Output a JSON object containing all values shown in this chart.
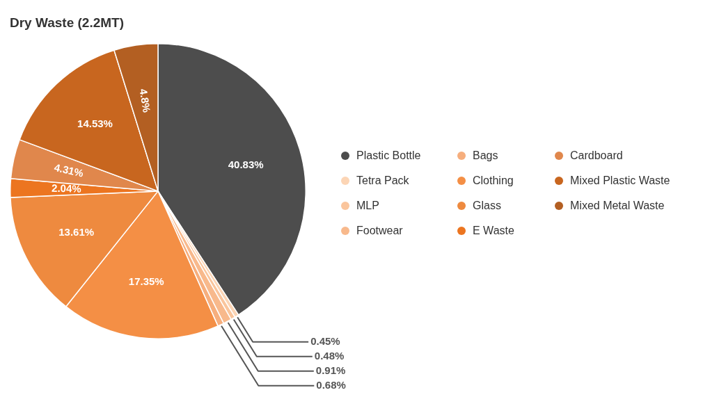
{
  "chart_data": {
    "type": "pie",
    "title": "Dry Waste (2.2MT)",
    "categories": [
      "Plastic Bottle",
      "Tetra Pack",
      "MLP",
      "Footwear",
      "Bags",
      "Clothing",
      "Glass",
      "E Waste",
      "Cardboard",
      "Mixed Plastic Waste",
      "Mixed Metal Waste"
    ],
    "values": [
      40.83,
      0.45,
      0.48,
      0.91,
      0.68,
      17.35,
      13.61,
      2.04,
      4.31,
      14.53,
      4.8
    ],
    "value_labels": [
      "40.83%",
      "0.45%",
      "0.48%",
      "0.91%",
      "0.68%",
      "17.35%",
      "13.61%",
      "2.04%",
      "4.31%",
      "14.53%",
      "4.8%"
    ],
    "colors": [
      "#4d4d4d",
      "#fcd5b5",
      "#fac59c",
      "#f8b98c",
      "#f6ae7d",
      "#f48f45",
      "#ee8a3f",
      "#ec7520",
      "#e0874c",
      "#c8661f",
      "#b35f22"
    ],
    "legend": "right"
  }
}
